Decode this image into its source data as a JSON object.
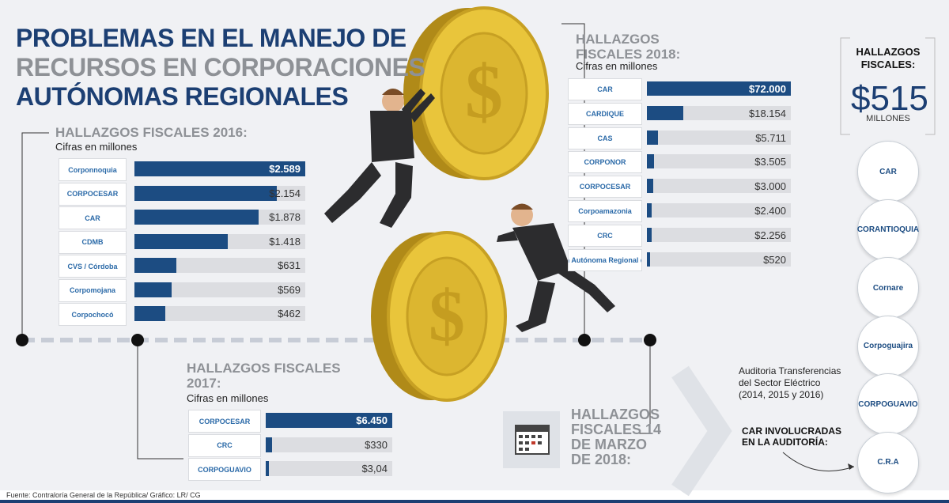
{
  "title": {
    "line1": "PROBLEMAS EN EL MANEJO DE",
    "line2": "RECURSOS EN CORPORACIONES",
    "line3": "AUTÓNOMAS REGIONALES"
  },
  "total": {
    "label_line1": "HALLAZGOS",
    "label_line2": "FISCALES:",
    "value": "$515",
    "unit": "MILLONES"
  },
  "audit": {
    "description": "Auditoria Transferencias del Sector Eléctrico (2014, 2015 y 2016)",
    "involved_label_line1": "CAR INVOLUCRADAS",
    "involved_label_line2": "EN LA AUDITORÍA:"
  },
  "march_2018": {
    "line1": "HALLAZGOS",
    "line2": "FISCALES 14",
    "line3": "DE MARZO",
    "line4": "DE 2018:"
  },
  "circle_logos": [
    "CAR",
    "CORANTIOQUIA",
    "Cornare",
    "Corpoguajira",
    "CORPOGUAVIO",
    "C.R.A"
  ],
  "footer": "Fuente: Contraloría General de la República/ Gráfico: LR/ CG",
  "colors": {
    "dark_blue": "#1c3f73",
    "bar_blue": "#1c4c82",
    "gray_title": "#8e9196",
    "track": "#dcdde1",
    "coin_gold": "#e9c53b"
  },
  "chart_data": [
    {
      "type": "bar",
      "title": "HALLAZGOS FISCALES 2016:",
      "subtitle": "Cifras en millones",
      "categories": [
        "Corponnoquia",
        "CORPOCESAR",
        "CAR",
        "CDMB",
        "CVS / Córdoba",
        "Corpomojana",
        "Corpochocó"
      ],
      "values": [
        2589,
        2154,
        1878,
        1418,
        631,
        569,
        462
      ],
      "labels": [
        "$2.589",
        "$2.154",
        "$1.878",
        "$1.418",
        "$631",
        "$569",
        "$462"
      ]
    },
    {
      "type": "bar",
      "title": "HALLAZGOS FISCALES 2017:",
      "subtitle": "Cifras en millones",
      "categories": [
        "CORPOCESAR",
        "CRC",
        "CORPOGUAVIO"
      ],
      "values": [
        6450,
        330,
        3.04
      ],
      "labels": [
        "$6.450",
        "$330",
        "$3,04"
      ]
    },
    {
      "type": "bar",
      "title": "HALLAZGOS FISCALES 2018:",
      "subtitle": "Cifras en millones",
      "categories": [
        "CAR",
        "CARDIQUE",
        "CAS",
        "CORPONOR",
        "CORPOCESAR",
        "Corpoamazonia",
        "CRC",
        "Corporación Autónoma Regional de Risaralda"
      ],
      "values": [
        72000,
        18154,
        5711,
        3505,
        3000,
        2400,
        2256,
        520
      ],
      "labels": [
        "$72.000",
        "$18.154",
        "$5.711",
        "$3.505",
        "$3.000",
        "$2.400",
        "$2.256",
        "$520"
      ]
    }
  ]
}
